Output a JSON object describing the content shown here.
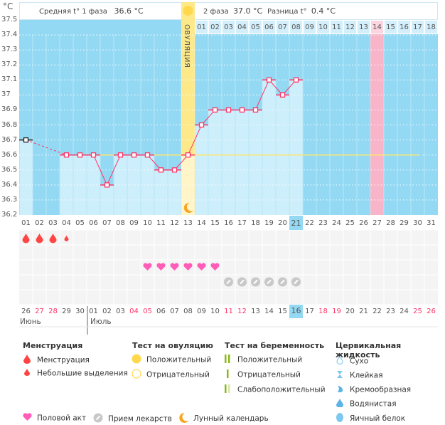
{
  "unit_label": "°C",
  "header": {
    "phase1_label": "Средняя t° 1 фаза",
    "phase1_value": "36.6 °C",
    "phase2_label": "2 фаза",
    "phase2_value": "37.0 °C",
    "diff_label": "Разница t°",
    "diff_value": "0.4 °C",
    "ovulation_label": "ОВУЛЯЦИЯ",
    "phase2_days": [
      "01",
      "02",
      "03",
      "04",
      "05",
      "06",
      "07",
      "08",
      "09",
      "10",
      "11",
      "12",
      "13",
      "14",
      "15",
      "16",
      "17",
      "18"
    ]
  },
  "chart_data": {
    "type": "line",
    "ylim": [
      36.2,
      37.5
    ],
    "yticks": [
      "37.5",
      "37.4",
      "37.3",
      "37.2",
      "37.1",
      "37",
      "36.9",
      "36.8",
      "36.7",
      "36.6",
      "36.5",
      "36.4",
      "36.3",
      "36.2"
    ],
    "x": [
      "01",
      "02",
      "03",
      "04",
      "05",
      "06",
      "07",
      "08",
      "09",
      "10",
      "11",
      "12",
      "13",
      "14",
      "15",
      "16",
      "17",
      "18",
      "19",
      "20",
      "21",
      "22",
      "23",
      "24",
      "25",
      "26",
      "27",
      "28",
      "29",
      "30",
      "31"
    ],
    "temperatures": [
      36.7,
      null,
      null,
      36.6,
      36.6,
      36.6,
      36.4,
      36.6,
      36.6,
      36.6,
      36.5,
      36.5,
      36.6,
      36.8,
      36.9,
      36.9,
      36.9,
      36.9,
      37.1,
      37.0,
      37.1,
      null,
      null,
      null,
      null,
      null,
      null,
      null,
      null,
      null,
      null
    ],
    "coverline": 36.6,
    "ovulation_day": 13,
    "expected_period_day": 27,
    "today_day": 21,
    "grid": true,
    "colors": {
      "background": "#94d9f3",
      "bar": "#cdeefb",
      "line": "#ff3366",
      "coverline": "#ffe66d",
      "ovulation": "#fde98a",
      "period": "#f8b4c8"
    }
  },
  "events": {
    "menstruation_days": [
      1,
      2,
      3
    ],
    "spotting_days": [
      4
    ],
    "intercourse_days": [
      10,
      11,
      12,
      13,
      14,
      15
    ],
    "medication_days": [
      16,
      17,
      18,
      19,
      20,
      21
    ]
  },
  "calendar": {
    "dates": [
      "26",
      "27",
      "28",
      "29",
      "30",
      "01",
      "02",
      "03",
      "04",
      "05",
      "06",
      "07",
      "08",
      "09",
      "10",
      "11",
      "12",
      "13",
      "14",
      "15",
      "16",
      "17",
      "18",
      "19",
      "20",
      "21",
      "22",
      "23",
      "24",
      "25",
      "26"
    ],
    "weekend_indices": [
      1,
      2,
      8,
      9,
      15,
      16,
      22,
      23,
      29,
      30
    ],
    "today_index": 20,
    "months": [
      "Июнь",
      "Июль"
    ]
  },
  "legend": {
    "menstruation": {
      "title": "Менструация",
      "items": [
        "Менструация",
        "Небольшие выделения"
      ]
    },
    "ovulation_test": {
      "title": "Тест на овуляцию",
      "items": [
        "Положительный",
        "Отрицательный"
      ]
    },
    "pregnancy_test": {
      "title": "Тест на беременность",
      "items": [
        "Положительный",
        "Отрицательный",
        "Слабоположительный"
      ]
    },
    "cervical_fluid": {
      "title": "Цервикальная жидкость",
      "items": [
        "Сухо",
        "Клейкая",
        "Кремообразная",
        "Водянистая",
        "Яичный белок"
      ]
    },
    "other": [
      "Половой акт",
      "Прием лекарств",
      "Лунный календарь"
    ]
  }
}
